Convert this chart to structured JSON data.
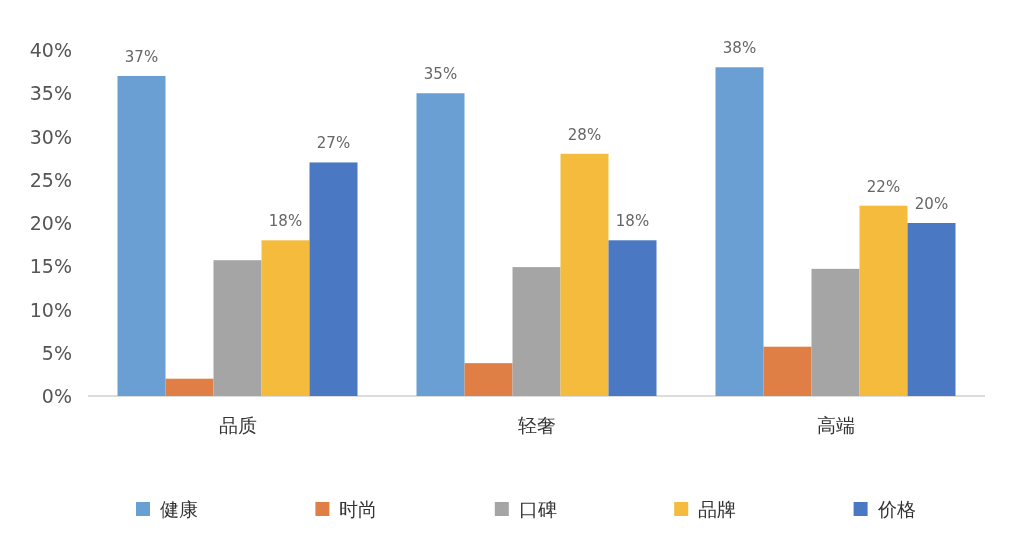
{
  "chart_data": {
    "type": "bar",
    "categories": [
      "品质",
      "轻奢",
      "高端"
    ],
    "series": [
      {
        "name": "健康",
        "color": "#6a9fd3",
        "values": [
          37,
          35,
          38
        ],
        "value_labels": [
          "37%",
          "35%",
          "38%"
        ]
      },
      {
        "name": "时尚",
        "color": "#e07f45",
        "values": [
          2,
          3.8,
          5.7
        ]
      },
      {
        "name": "口碑",
        "color": "#a5a5a5",
        "values": [
          15.7,
          14.9,
          14.7
        ]
      },
      {
        "name": "品牌",
        "color": "#f4bb3d",
        "values": [
          18,
          28,
          22
        ],
        "value_labels": [
          "18%",
          "28%",
          "22%"
        ]
      },
      {
        "name": "价格",
        "color": "#4a78c2",
        "values": [
          27,
          18,
          20
        ],
        "value_labels": [
          "27%",
          "18%",
          "20%"
        ]
      }
    ],
    "ylim": [
      0,
      40
    ],
    "yticks": [
      {
        "value": 0,
        "label": "0%"
      },
      {
        "value": 5,
        "label": "5%"
      },
      {
        "value": 10,
        "label": "10%"
      },
      {
        "value": 15,
        "label": "15%"
      },
      {
        "value": 20,
        "label": "20%"
      },
      {
        "value": 25,
        "label": "25%"
      },
      {
        "value": 30,
        "label": "30%"
      },
      {
        "value": 35,
        "label": "35%"
      },
      {
        "value": 40,
        "label": "40%"
      }
    ],
    "grid": false,
    "legend": "bottom"
  }
}
